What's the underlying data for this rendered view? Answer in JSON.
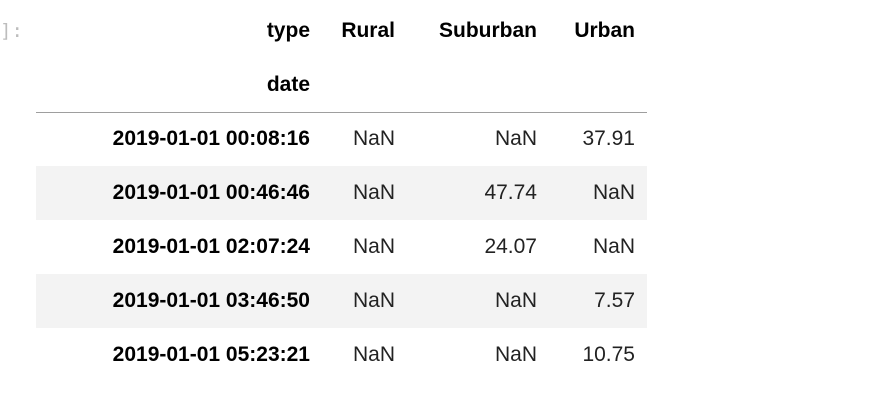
{
  "cell": {
    "prompt": "]:"
  },
  "table": {
    "columns_name": "type",
    "index_name": "date",
    "columns": [
      "Rural",
      "Suburban",
      "Urban"
    ],
    "rows": [
      {
        "index": "2019-01-01 00:08:16",
        "values": [
          "NaN",
          "NaN",
          "37.91"
        ]
      },
      {
        "index": "2019-01-01 00:46:46",
        "values": [
          "NaN",
          "47.74",
          "NaN"
        ]
      },
      {
        "index": "2019-01-01 02:07:24",
        "values": [
          "NaN",
          "24.07",
          "NaN"
        ]
      },
      {
        "index": "2019-01-01 03:46:50",
        "values": [
          "NaN",
          "NaN",
          "7.57"
        ]
      },
      {
        "index": "2019-01-01 05:23:21",
        "values": [
          "NaN",
          "NaN",
          "10.75"
        ]
      }
    ]
  }
}
